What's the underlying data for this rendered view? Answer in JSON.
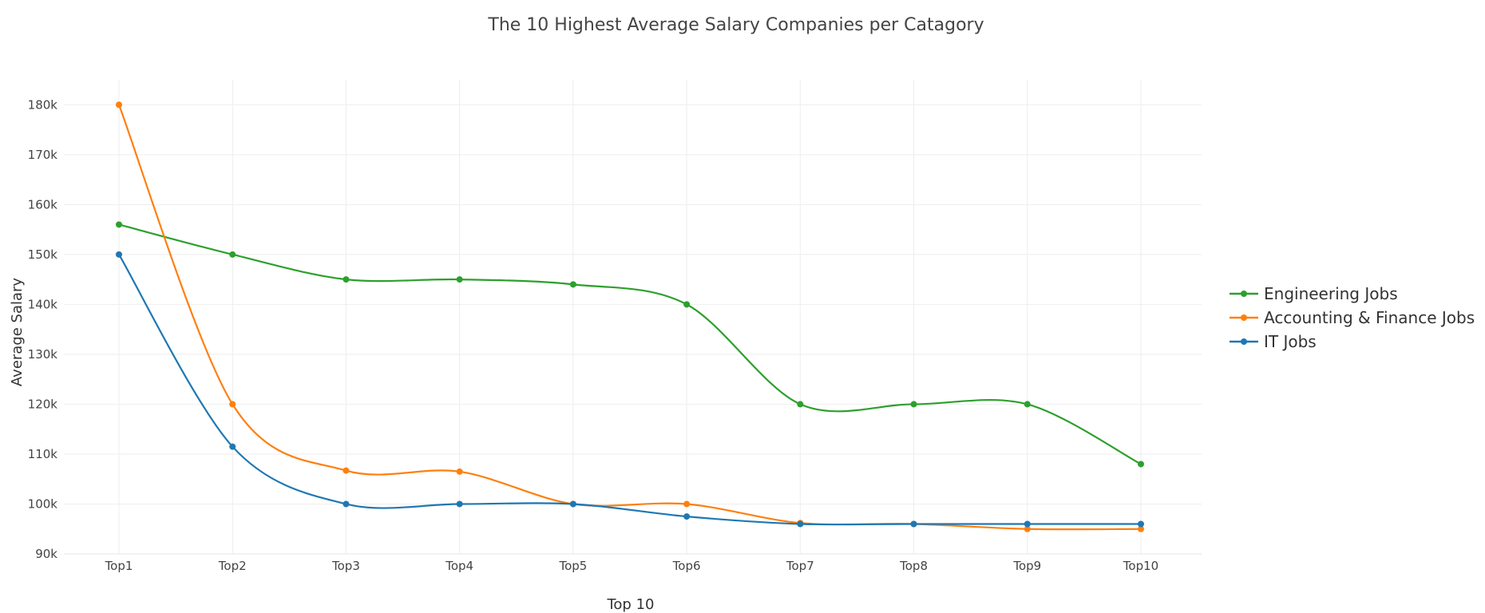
{
  "chart_data": {
    "type": "line",
    "title": "The 10 Highest Average Salary Companies per Catagory",
    "xlabel": "Top 10",
    "ylabel": "Average Salary",
    "categories": [
      "Top1",
      "Top2",
      "Top3",
      "Top4",
      "Top5",
      "Top6",
      "Top7",
      "Top8",
      "Top9",
      "Top10"
    ],
    "ylim": [
      90000,
      185000
    ],
    "yticks": [
      90000,
      100000,
      110000,
      120000,
      130000,
      140000,
      150000,
      160000,
      170000,
      180000
    ],
    "ytick_labels": [
      "90k",
      "100k",
      "110k",
      "120k",
      "130k",
      "140k",
      "150k",
      "160k",
      "170k",
      "180k"
    ],
    "grid": true,
    "smoothed": true,
    "legend_position": "right",
    "series": [
      {
        "name": "Engineering Jobs",
        "color": "#2ca02c",
        "values": [
          156000,
          150000,
          145000,
          145000,
          144000,
          140000,
          120000,
          120000,
          120000,
          108000
        ]
      },
      {
        "name": "Accounting & Finance Jobs",
        "color": "#ff7f0e",
        "values": [
          180000,
          120000,
          106700,
          106500,
          100000,
          100000,
          96200,
          96000,
          95000,
          95000
        ]
      },
      {
        "name": "IT Jobs",
        "color": "#1f77b4",
        "values": [
          150000,
          111500,
          100000,
          100000,
          100000,
          97500,
          96000,
          96000,
          96000,
          96000
        ]
      }
    ]
  }
}
